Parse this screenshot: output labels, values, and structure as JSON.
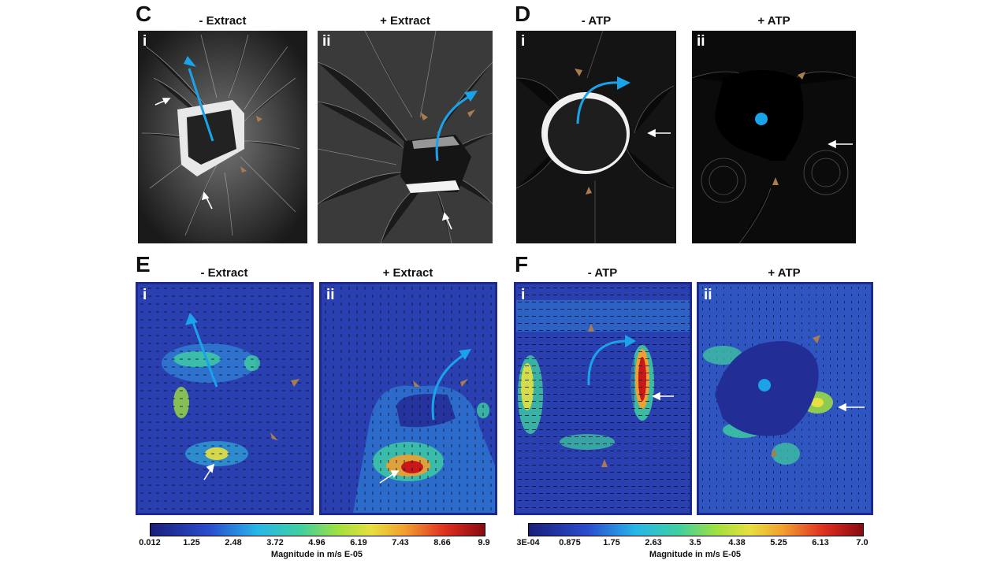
{
  "panels": {
    "C": {
      "letter": "C",
      "left_title": "- Extract",
      "right_title": "+ Extract"
    },
    "D": {
      "letter": "D",
      "left_title": "- ATP",
      "right_title": "+ ATP"
    },
    "E": {
      "letter": "E",
      "left_title": "- Extract",
      "right_title": "+ Extract"
    },
    "F": {
      "letter": "F",
      "left_title": "- ATP",
      "right_title": "+ ATP"
    }
  },
  "subpanel_labels": {
    "first": "i",
    "second": "ii"
  },
  "colorbars": {
    "E": {
      "ticks": [
        "0.012",
        "1.25",
        "2.48",
        "3.72",
        "4.96",
        "6.19",
        "7.43",
        "8.66",
        "9.9"
      ],
      "title": "Magnitude in m/s E-05"
    },
    "F": {
      "ticks": [
        "3E-04",
        "0.875",
        "1.75",
        "2.63",
        "3.5",
        "4.38",
        "5.25",
        "6.13",
        "7.0"
      ],
      "title": "Magnitude in m/s E-05"
    }
  },
  "colors": {
    "flow_arrow": "#1aa3e8",
    "brown_arrow": "#a97c50",
    "white_arrow": "#ffffff",
    "heatmap_frame": "#1d2a8c"
  }
}
